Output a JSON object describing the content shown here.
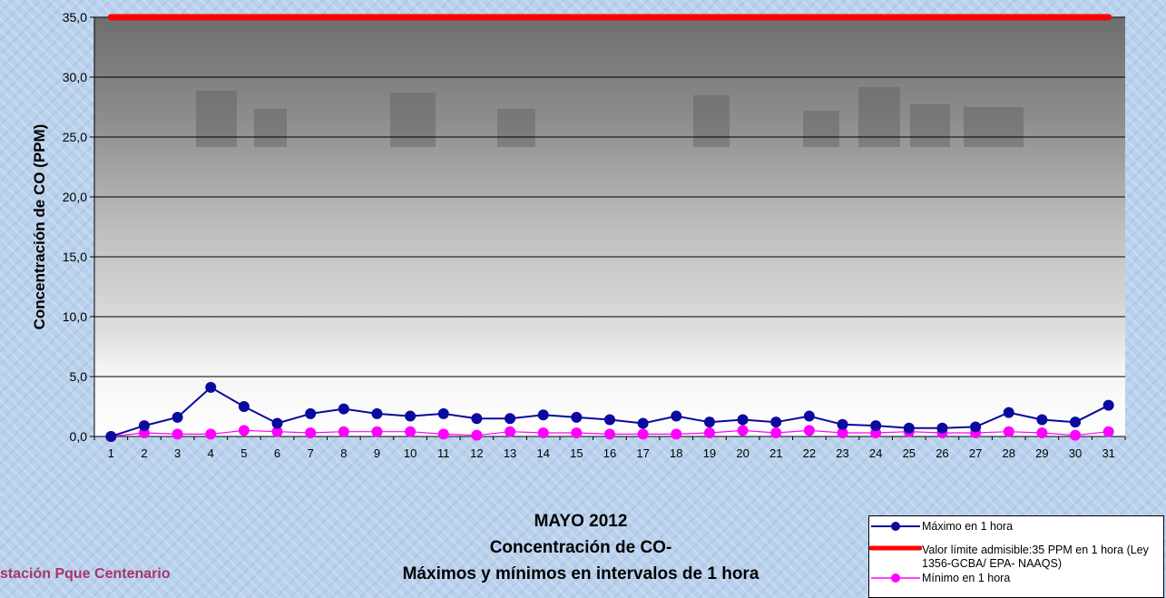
{
  "chart_data": {
    "type": "line",
    "title": "MAYO 2012",
    "subtitle_lines": [
      "Concentración de CO-",
      "Máximos y mínimos en intervalos de 1 hora"
    ],
    "station_label": "stación Pque Centenario",
    "ylabel": "Concentración de CO (PPM)",
    "xlabel": "",
    "ylim": [
      0,
      35
    ],
    "yticks": [
      "0,0",
      "5,0",
      "10,0",
      "15,0",
      "20,0",
      "25,0",
      "30,0",
      "35,0"
    ],
    "categories": [
      "1",
      "2",
      "3",
      "4",
      "5",
      "6",
      "7",
      "8",
      "9",
      "10",
      "11",
      "12",
      "13",
      "14",
      "15",
      "16",
      "17",
      "18",
      "19",
      "20",
      "21",
      "22",
      "23",
      "24",
      "25",
      "26",
      "27",
      "28",
      "29",
      "30",
      "31"
    ],
    "grid": "horizontal",
    "legend_position": "bottom-right",
    "series": [
      {
        "name": "Máximo en 1 hora",
        "color": "#0a0a9e",
        "marker": "circle",
        "values": [
          0.0,
          0.9,
          1.6,
          4.1,
          2.5,
          1.1,
          1.9,
          2.3,
          1.9,
          1.7,
          1.9,
          1.5,
          1.5,
          1.8,
          1.6,
          1.4,
          1.1,
          1.7,
          1.2,
          1.4,
          1.2,
          1.7,
          1.0,
          0.9,
          0.7,
          0.7,
          0.8,
          2.0,
          1.4,
          1.2,
          2.6
        ]
      },
      {
        "name": "Valor límite admisible:35 PPM en 1 hora (Ley 1356-GCBA/ EPA- NAAQS)",
        "color": "#ff0000",
        "marker": "none",
        "values": [
          35,
          35,
          35,
          35,
          35,
          35,
          35,
          35,
          35,
          35,
          35,
          35,
          35,
          35,
          35,
          35,
          35,
          35,
          35,
          35,
          35,
          35,
          35,
          35,
          35,
          35,
          35,
          35,
          35,
          35,
          35
        ]
      },
      {
        "name": "Mínimo en 1 hora",
        "color": "#ff00ff",
        "marker": "circle",
        "values": [
          0.0,
          0.3,
          0.2,
          0.2,
          0.5,
          0.4,
          0.3,
          0.4,
          0.4,
          0.4,
          0.2,
          0.1,
          0.4,
          0.3,
          0.3,
          0.2,
          0.2,
          0.2,
          0.3,
          0.5,
          0.3,
          0.5,
          0.3,
          0.3,
          0.4,
          0.3,
          0.3,
          0.4,
          0.3,
          0.1,
          0.4
        ]
      }
    ]
  }
}
